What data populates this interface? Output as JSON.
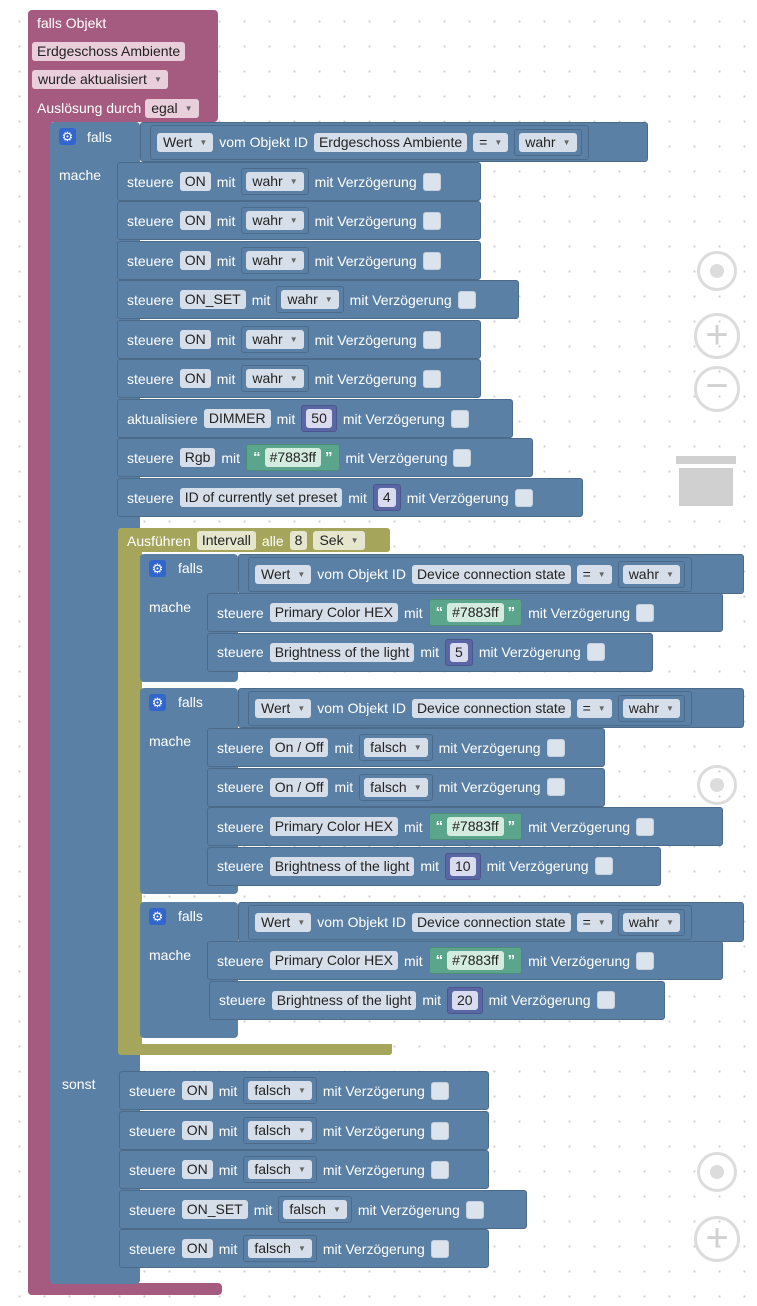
{
  "trigger": {
    "title": "falls Objekt",
    "object_name": "Erdgeschoss Ambiente",
    "event": "wurde aktualisiert",
    "trigger_label": "Auslösung durch",
    "trigger_value": "egal"
  },
  "kw": {
    "falls": "falls",
    "mache": "mache",
    "sonst": "sonst",
    "steuere": "steuere",
    "aktualisiere": "aktualisiere",
    "mit": "mit",
    "delay": "mit Verzögerung",
    "wert": "Wert",
    "vom_objekt": "vom Objekt ID",
    "eq": "=",
    "open_q": "“",
    "close_q": "”"
  },
  "main_if": {
    "object": "Erdgeschoss Ambiente",
    "value": "wahr"
  },
  "then_rows": [
    {
      "verb": "steuere",
      "target": "ON",
      "value": "wahr"
    },
    {
      "verb": "steuere",
      "target": "ON",
      "value": "wahr"
    },
    {
      "verb": "steuere",
      "target": "ON",
      "value": "wahr"
    },
    {
      "verb": "steuere",
      "target": "ON_SET",
      "value": "wahr"
    },
    {
      "verb": "steuere",
      "target": "ON",
      "value": "wahr"
    },
    {
      "verb": "steuere",
      "target": "ON",
      "value": "wahr"
    },
    {
      "verb": "aktualisiere",
      "target": "DIMMER",
      "value": "50"
    },
    {
      "verb": "steuere",
      "target": "Rgb",
      "value": "#7883ff"
    },
    {
      "verb": "steuere",
      "target": "ID of currently set preset",
      "value": "4"
    }
  ],
  "interval": {
    "label": "Ausführen",
    "type": "Intervall",
    "every": "alle",
    "count": "8",
    "unit": "Sek"
  },
  "inner_ifs": [
    {
      "object": "Device connection state",
      "value": "wahr",
      "rows": [
        {
          "target": "Primary Color HEX",
          "value": "#7883ff"
        },
        {
          "target": "Brightness of the light",
          "value": "5"
        }
      ]
    },
    {
      "object": "Device connection state",
      "value": "wahr",
      "rows": [
        {
          "target": "On / Off",
          "value": "falsch"
        },
        {
          "target": "On / Off",
          "value": "falsch"
        },
        {
          "target": "Primary Color HEX",
          "value": "#7883ff"
        },
        {
          "target": "Brightness of the light",
          "value": "10"
        }
      ]
    },
    {
      "object": "Device connection state",
      "value": "wahr",
      "rows": [
        {
          "target": "Primary Color HEX",
          "value": "#7883ff"
        },
        {
          "target": "Brightness of the light",
          "value": "20"
        }
      ]
    }
  ],
  "else_rows": [
    {
      "target": "ON",
      "value": "falsch"
    },
    {
      "target": "ON",
      "value": "falsch"
    },
    {
      "target": "ON",
      "value": "falsch"
    },
    {
      "target": "ON_SET",
      "value": "falsch"
    },
    {
      "target": "ON",
      "value": "falsch"
    }
  ],
  "colors": {
    "trigger_block": "#a55b80",
    "logic_block": "#5b80a5",
    "timer_block": "#a5a55b",
    "string_block": "#5ba58c",
    "number_block": "#5b67a5"
  },
  "icons": [
    "gear-icon",
    "recenter-icon",
    "zoom-in-icon",
    "zoom-out-icon",
    "trash-icon"
  ]
}
